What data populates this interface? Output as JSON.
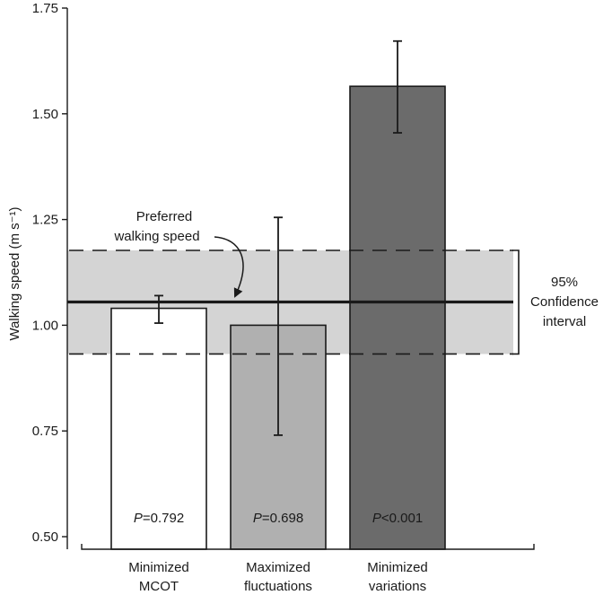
{
  "chart_data": {
    "type": "bar",
    "categories": [
      [
        "Minimized",
        "MCOT"
      ],
      [
        "Maximized",
        "fluctuations"
      ],
      [
        "Minimized",
        "variations"
      ]
    ],
    "values": [
      1.04,
      1.0,
      1.565
    ],
    "error_low": [
      1.005,
      0.74,
      1.455
    ],
    "error_high": [
      1.07,
      1.255,
      1.672
    ],
    "bar_colors": [
      "#ffffff",
      "#b0b0b0",
      "#6b6b6b"
    ],
    "p_labels": [
      {
        "italic": "P",
        "rest": "=0.792"
      },
      {
        "italic": "P",
        "rest": "=0.698"
      },
      {
        "italic": "P",
        "rest": "<0.001"
      }
    ],
    "ylabel": "Walking speed (m s⁻¹)",
    "ylim": [
      0.5,
      1.75
    ],
    "yticks": [
      "0.50",
      "0.75",
      "1.00",
      "1.25",
      "1.50",
      "1.75"
    ],
    "reference_line": {
      "value": 1.055,
      "label": [
        "Preferred",
        "walking speed"
      ]
    },
    "confidence_band": {
      "low": 0.932,
      "high": 1.177,
      "label": [
        "95%",
        "Confidence",
        "interval"
      ],
      "color": "#d4d4d4"
    },
    "grid": false
  }
}
